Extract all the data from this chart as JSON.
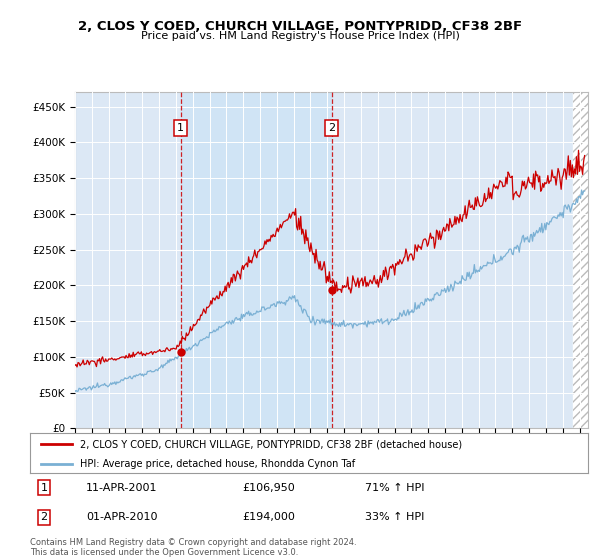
{
  "title": "2, CLOS Y COED, CHURCH VILLAGE, PONTYPRIDD, CF38 2BF",
  "subtitle": "Price paid vs. HM Land Registry's House Price Index (HPI)",
  "ylabel_ticks": [
    "£0",
    "£50K",
    "£100K",
    "£150K",
    "£200K",
    "£250K",
    "£300K",
    "£350K",
    "£400K",
    "£450K"
  ],
  "ytick_values": [
    0,
    50000,
    100000,
    150000,
    200000,
    250000,
    300000,
    350000,
    400000,
    450000
  ],
  "ylim": [
    0,
    470000
  ],
  "xlim_start": 1995.0,
  "xlim_end": 2025.5,
  "red_line_color": "#cc0000",
  "blue_line_color": "#7ab0d4",
  "purchase1_x": 2001.28,
  "purchase1_y": 106950,
  "purchase2_x": 2010.25,
  "purchase2_y": 194000,
  "purchase1_label": "11-APR-2001",
  "purchase1_price": "£106,950",
  "purchase1_hpi": "71% ↑ HPI",
  "purchase2_label": "01-APR-2010",
  "purchase2_price": "£194,000",
  "purchase2_hpi": "33% ↑ HPI",
  "legend_red": "2, CLOS Y COED, CHURCH VILLAGE, PONTYPRIDD, CF38 2BF (detached house)",
  "legend_blue": "HPI: Average price, detached house, Rhondda Cynon Taf",
  "footnote": "Contains HM Land Registry data © Crown copyright and database right 2024.\nThis data is licensed under the Open Government Licence v3.0.",
  "background_color": "#ffffff",
  "plot_bg_color": "#dce8f5",
  "shade_between_color": "#ccddf0",
  "hatch_color": "#cccccc"
}
